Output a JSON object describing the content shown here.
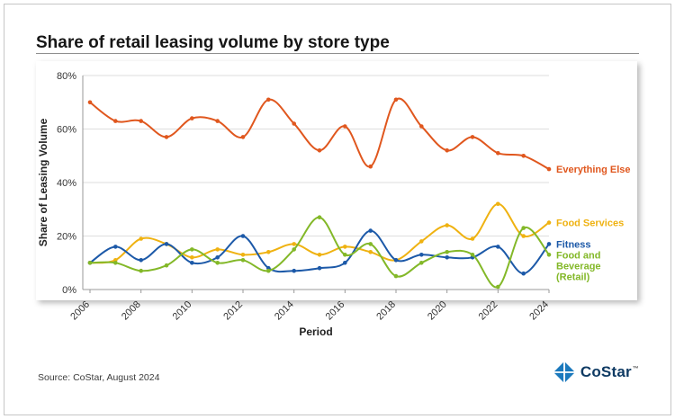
{
  "page": {
    "title": "Share of retail leasing volume by store type",
    "source": "Source: CoStar, August 2024",
    "logo_text": "CoStar",
    "logo_tm": "™"
  },
  "icons": {
    "logo_mark": "costar-pinwheel-icon",
    "logo_color": "#1b79bd"
  },
  "chart_data": {
    "type": "line",
    "title": "Share of retail leasing volume by store type",
    "xlabel": "Period",
    "ylabel": "Share of Leasing Volume",
    "ylim": [
      0,
      80
    ],
    "yticks": [
      0,
      20,
      40,
      60,
      80
    ],
    "ytick_suffix": "%",
    "grid": true,
    "legend_position": "right-of-line-ends",
    "x": [
      2006,
      2007,
      2008,
      2009,
      2010,
      2011,
      2012,
      2013,
      2014,
      2015,
      2016,
      2017,
      2018,
      2019,
      2020,
      2021,
      2022,
      2023,
      2024
    ],
    "xtick_step": 2,
    "series": [
      {
        "name": "Everything Else",
        "color": "#E0571E",
        "values": [
          70,
          63,
          63,
          57,
          64,
          63,
          57,
          71,
          62,
          52,
          61,
          46,
          71,
          61,
          52,
          57,
          51,
          50,
          45
        ]
      },
      {
        "name": "Food Services",
        "color": "#EFB211",
        "values": [
          10,
          11,
          19,
          17,
          12,
          15,
          13,
          14,
          17,
          13,
          16,
          14,
          11,
          18,
          24,
          19,
          32,
          20,
          25
        ]
      },
      {
        "name": "Fitness",
        "color": "#1C59A8",
        "values": [
          10,
          16,
          11,
          17,
          10,
          12,
          20,
          8,
          7,
          8,
          10,
          22,
          11,
          13,
          12,
          12,
          16,
          6,
          17
        ]
      },
      {
        "name": "Food and Beverage (Retail)",
        "color": "#83B828",
        "label_lines": [
          "Food and",
          "Beverage",
          "(Retail)"
        ],
        "values": [
          10,
          10,
          7,
          9,
          15,
          10,
          11,
          7,
          15,
          27,
          13,
          17,
          5,
          10,
          14,
          13,
          1,
          23,
          13
        ]
      }
    ]
  }
}
